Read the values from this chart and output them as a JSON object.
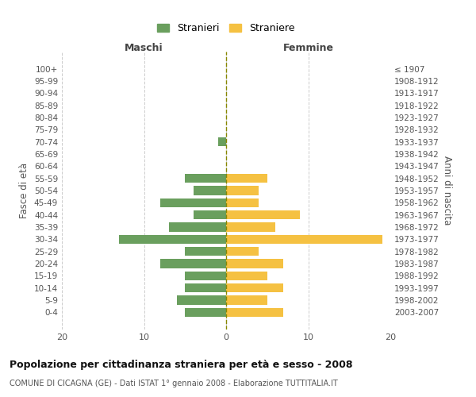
{
  "age_groups": [
    "0-4",
    "5-9",
    "10-14",
    "15-19",
    "20-24",
    "25-29",
    "30-34",
    "35-39",
    "40-44",
    "45-49",
    "50-54",
    "55-59",
    "60-64",
    "65-69",
    "70-74",
    "75-79",
    "80-84",
    "85-89",
    "90-94",
    "95-99",
    "100+"
  ],
  "birth_years": [
    "2003-2007",
    "1998-2002",
    "1993-1997",
    "1988-1992",
    "1983-1987",
    "1978-1982",
    "1973-1977",
    "1968-1972",
    "1963-1967",
    "1958-1962",
    "1953-1957",
    "1948-1952",
    "1943-1947",
    "1938-1942",
    "1933-1937",
    "1928-1932",
    "1923-1927",
    "1918-1922",
    "1913-1917",
    "1908-1912",
    "≤ 1907"
  ],
  "maschi": [
    5,
    6,
    5,
    5,
    8,
    5,
    13,
    7,
    4,
    8,
    4,
    5,
    0,
    0,
    1,
    0,
    0,
    0,
    0,
    0,
    0
  ],
  "femmine": [
    7,
    5,
    7,
    5,
    7,
    4,
    19,
    6,
    9,
    4,
    4,
    5,
    0,
    0,
    0,
    0,
    0,
    0,
    0,
    0,
    0
  ],
  "maschi_color": "#6a9f5e",
  "femmine_color": "#f5c142",
  "title": "Popolazione per cittadinanza straniera per età e sesso - 2008",
  "subtitle": "COMUNE DI CICAGNA (GE) - Dati ISTAT 1° gennaio 2008 - Elaborazione TUTTITALIA.IT",
  "ylabel_left": "Fasce di età",
  "ylabel_right": "Anni di nascita",
  "xlabel_left": "Maschi",
  "xlabel_right": "Femmine",
  "legend_stranieri": "Stranieri",
  "legend_straniere": "Straniere",
  "xlim": 20,
  "background_color": "#ffffff",
  "grid_color": "#cccccc",
  "bar_height": 0.75,
  "center_line_color": "#888800"
}
